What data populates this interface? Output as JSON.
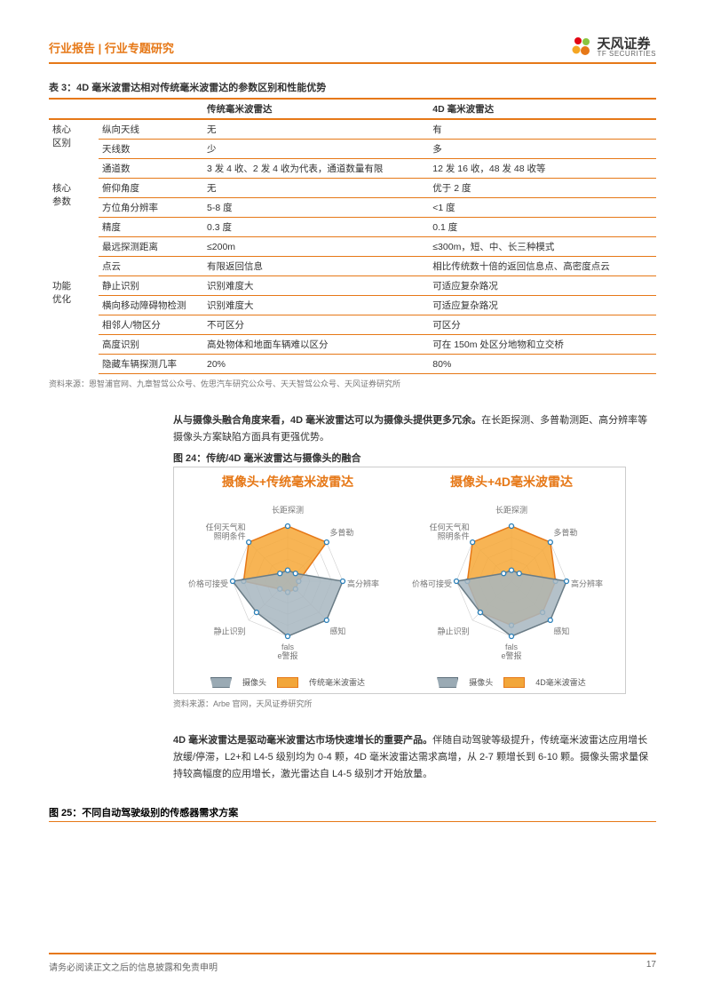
{
  "header": {
    "left": "行业报告 | 行业专题研究",
    "logo_cn": "天风证券",
    "logo_en": "TF SECURITIES",
    "logo_colors": [
      "#e30613",
      "#8bc53f",
      "#f5a623",
      "#e67817"
    ]
  },
  "table": {
    "title": "表 3：4D 毫米波雷达相对传统毫米波雷达的参数区别和性能优势",
    "columns": [
      "",
      "",
      "传统毫米波雷达",
      "4D 毫米波雷达"
    ],
    "groups": [
      {
        "cat": "核心区别",
        "rows": [
          [
            "纵向天线",
            "无",
            "有"
          ],
          [
            "天线数",
            "少",
            "多"
          ],
          [
            "通道数",
            "3 发 4 收、2 发 4 收为代表，通道数量有限",
            "12 发 16 收，48 发 48 收等"
          ]
        ]
      },
      {
        "cat": "核心参数",
        "rows": [
          [
            "俯仰角度",
            "无",
            "优于 2 度"
          ],
          [
            "方位角分辨率",
            "5-8 度",
            "<1 度"
          ],
          [
            "精度",
            "0.3 度",
            "0.1 度"
          ],
          [
            "最远探测距离",
            "≤200m",
            "≤300m，短、中、长三种模式"
          ],
          [
            "点云",
            "有限返回信息",
            "相比传统数十倍的返回信息点、高密度点云"
          ]
        ]
      },
      {
        "cat": "功能优化",
        "rows": [
          [
            "静止识别",
            "识别难度大",
            "可适应复杂路况"
          ],
          [
            "横向移动障碍物检测",
            "识别难度大",
            "可适应复杂路况"
          ],
          [
            "相邻人/物区分",
            "不可区分",
            "可区分"
          ],
          [
            "高度识别",
            "高处物体和地面车辆难以区分",
            "可在 150m 处区分地物和立交桥"
          ],
          [
            "隐藏车辆探测几率",
            "20%",
            "80%"
          ]
        ]
      }
    ],
    "source": "资料来源：恩智浦官网、九章智驾公众号、佐思汽车研究公众号、天天智驾公众号、天风证券研究所"
  },
  "para1": {
    "bold": "从与摄像头融合角度来看，4D 毫米波雷达可以为摄像头提供更多冗余。",
    "rest": "在长距探测、多普勒测距、高分辨率等摄像头方案缺陷方面具有更强优势。"
  },
  "fig24": {
    "title": "图 24：传统/4D 毫米波雷达与摄像头的融合",
    "panelA_title": "摄像头+传统毫米波雷达",
    "panelB_title": "摄像头+4D毫米波雷达",
    "axes": [
      "长距探测",
      "多普勒",
      "高分辨率",
      "感知",
      "false警报",
      "静止识别",
      "价格可接受",
      "任何天气和照明条件"
    ],
    "camera_color": "#a7b6bf",
    "camera_stroke": "#6a7c86",
    "radar_color": "#f6a736",
    "radar_stroke": "#e67817",
    "marker_color": "#2a7fb8",
    "grid_color": "#cfcfcf",
    "cameraA": [
      1,
      1,
      5,
      5,
      5,
      4,
      5,
      1
    ],
    "radarA": [
      5,
      5,
      1,
      1,
      1,
      1,
      4,
      5
    ],
    "cameraB": [
      1,
      1,
      5,
      5,
      5,
      4,
      5,
      1
    ],
    "radarB": [
      5,
      5,
      4,
      4,
      4,
      4,
      4,
      5
    ],
    "legend_cam": "摄像头",
    "legendA_radar": "传统毫米波雷达",
    "legendB_radar": "4D毫米波雷达",
    "source": "资料来源：Arbe 官网，天风证券研究所"
  },
  "para2": {
    "bold": "4D 毫米波雷达是驱动毫米波雷达市场快速增长的重要产品。",
    "rest": "伴随自动驾驶等级提升，传统毫米波雷达应用增长放缓/停滞，L2+和 L4-5 级别均为 0-4 颗，4D 毫米波雷达需求高增，从 2-7 颗增长到 6-10 颗。摄像头需求量保持较高幅度的应用增长，激光雷达自 L4-5 级别才开始放量。"
  },
  "fig25_title": "图 25：不同自动驾驶级别的传感器需求方案",
  "footer": {
    "text": "请务必阅读正文之后的信息披露和免责申明",
    "page": "17"
  }
}
